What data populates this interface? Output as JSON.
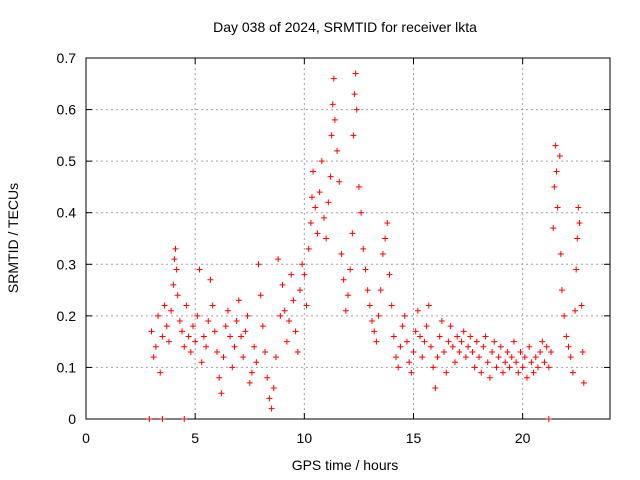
{
  "chart_data": {
    "type": "scatter",
    "title": "Day 038 of 2024, SRMTID for receiver lkta",
    "xlabel": "GPS time / hours",
    "ylabel": "SRMTID / TECUs",
    "xlim": [
      0,
      24
    ],
    "ylim": [
      0,
      0.7
    ],
    "xticks": [
      0,
      5,
      10,
      15,
      20
    ],
    "yticks": [
      0,
      0.1,
      0.2,
      0.3,
      0.4,
      0.5,
      0.6,
      0.7
    ],
    "grid": true,
    "marker": "+",
    "color": "#ff0000",
    "series": [
      {
        "name": "lkta",
        "points": [
          [
            2.9,
            0.0
          ],
          [
            3.5,
            0.0
          ],
          [
            4.5,
            0.0
          ],
          [
            21.2,
            0.0
          ],
          [
            3.0,
            0.17
          ],
          [
            3.1,
            0.12
          ],
          [
            3.2,
            0.14
          ],
          [
            3.3,
            0.2
          ],
          [
            3.4,
            0.09
          ],
          [
            3.5,
            0.16
          ],
          [
            3.6,
            0.22
          ],
          [
            3.7,
            0.18
          ],
          [
            3.8,
            0.15
          ],
          [
            3.9,
            0.21
          ],
          [
            4.0,
            0.26
          ],
          [
            4.05,
            0.31
          ],
          [
            4.1,
            0.33
          ],
          [
            4.15,
            0.29
          ],
          [
            4.2,
            0.24
          ],
          [
            4.3,
            0.19
          ],
          [
            4.4,
            0.17
          ],
          [
            4.5,
            0.14
          ],
          [
            4.6,
            0.22
          ],
          [
            4.7,
            0.16
          ],
          [
            4.8,
            0.13
          ],
          [
            4.9,
            0.18
          ],
          [
            5.0,
            0.15
          ],
          [
            5.1,
            0.2
          ],
          [
            5.2,
            0.29
          ],
          [
            5.3,
            0.11
          ],
          [
            5.4,
            0.16
          ],
          [
            5.5,
            0.14
          ],
          [
            5.6,
            0.19
          ],
          [
            5.7,
            0.27
          ],
          [
            5.8,
            0.22
          ],
          [
            5.9,
            0.17
          ],
          [
            6.0,
            0.13
          ],
          [
            6.1,
            0.08
          ],
          [
            6.2,
            0.05
          ],
          [
            6.3,
            0.12
          ],
          [
            6.4,
            0.18
          ],
          [
            6.5,
            0.21
          ],
          [
            6.6,
            0.16
          ],
          [
            6.7,
            0.1
          ],
          [
            6.8,
            0.14
          ],
          [
            6.9,
            0.19
          ],
          [
            7.0,
            0.23
          ],
          [
            7.1,
            0.16
          ],
          [
            7.2,
            0.12
          ],
          [
            7.3,
            0.17
          ],
          [
            7.4,
            0.2
          ],
          [
            7.5,
            0.07
          ],
          [
            7.6,
            0.09
          ],
          [
            7.7,
            0.14
          ],
          [
            7.8,
            0.11
          ],
          [
            7.9,
            0.3
          ],
          [
            8.0,
            0.24
          ],
          [
            8.1,
            0.18
          ],
          [
            8.2,
            0.13
          ],
          [
            8.3,
            0.08
          ],
          [
            8.4,
            0.04
          ],
          [
            8.5,
            0.02
          ],
          [
            8.6,
            0.06
          ],
          [
            8.7,
            0.12
          ],
          [
            8.8,
            0.31
          ],
          [
            8.9,
            0.2
          ],
          [
            9.0,
            0.26
          ],
          [
            9.1,
            0.21
          ],
          [
            9.2,
            0.15
          ],
          [
            9.3,
            0.19
          ],
          [
            9.4,
            0.28
          ],
          [
            9.5,
            0.23
          ],
          [
            9.6,
            0.17
          ],
          [
            9.7,
            0.13
          ],
          [
            9.8,
            0.25
          ],
          [
            9.9,
            0.3
          ],
          [
            10.0,
            0.28
          ],
          [
            10.1,
            0.22
          ],
          [
            10.2,
            0.33
          ],
          [
            10.3,
            0.38
          ],
          [
            10.35,
            0.43
          ],
          [
            10.4,
            0.48
          ],
          [
            10.5,
            0.41
          ],
          [
            10.6,
            0.36
          ],
          [
            10.7,
            0.44
          ],
          [
            10.8,
            0.5
          ],
          [
            10.9,
            0.39
          ],
          [
            11.0,
            0.35
          ],
          [
            11.1,
            0.42
          ],
          [
            11.2,
            0.47
          ],
          [
            11.25,
            0.55
          ],
          [
            11.3,
            0.61
          ],
          [
            11.35,
            0.66
          ],
          [
            11.4,
            0.58
          ],
          [
            11.5,
            0.52
          ],
          [
            11.6,
            0.46
          ],
          [
            11.7,
            0.32
          ],
          [
            11.8,
            0.27
          ],
          [
            11.9,
            0.21
          ],
          [
            12.0,
            0.24
          ],
          [
            12.1,
            0.29
          ],
          [
            12.2,
            0.36
          ],
          [
            12.25,
            0.55
          ],
          [
            12.3,
            0.63
          ],
          [
            12.35,
            0.67
          ],
          [
            12.4,
            0.6
          ],
          [
            12.5,
            0.45
          ],
          [
            12.6,
            0.4
          ],
          [
            12.7,
            0.33
          ],
          [
            12.8,
            0.29
          ],
          [
            12.9,
            0.25
          ],
          [
            13.0,
            0.22
          ],
          [
            13.1,
            0.19
          ],
          [
            13.2,
            0.17
          ],
          [
            13.3,
            0.15
          ],
          [
            13.4,
            0.2
          ],
          [
            13.5,
            0.25
          ],
          [
            13.6,
            0.32
          ],
          [
            13.7,
            0.35
          ],
          [
            13.8,
            0.38
          ],
          [
            13.9,
            0.28
          ],
          [
            14.0,
            0.22
          ],
          [
            14.1,
            0.16
          ],
          [
            14.2,
            0.12
          ],
          [
            14.3,
            0.1
          ],
          [
            14.4,
            0.14
          ],
          [
            14.5,
            0.18
          ],
          [
            14.6,
            0.2
          ],
          [
            14.7,
            0.15
          ],
          [
            14.8,
            0.11
          ],
          [
            14.9,
            0.09
          ],
          [
            15.0,
            0.13
          ],
          [
            15.1,
            0.17
          ],
          [
            15.2,
            0.21
          ],
          [
            15.3,
            0.16
          ],
          [
            15.4,
            0.12
          ],
          [
            15.5,
            0.15
          ],
          [
            15.6,
            0.18
          ],
          [
            15.7,
            0.22
          ],
          [
            15.8,
            0.14
          ],
          [
            15.9,
            0.1
          ],
          [
            16.0,
            0.06
          ],
          [
            16.1,
            0.12
          ],
          [
            16.2,
            0.16
          ],
          [
            16.3,
            0.19
          ],
          [
            16.4,
            0.13
          ],
          [
            16.5,
            0.09
          ],
          [
            16.6,
            0.15
          ],
          [
            16.7,
            0.18
          ],
          [
            16.8,
            0.14
          ],
          [
            16.9,
            0.11
          ],
          [
            17.0,
            0.16
          ],
          [
            17.1,
            0.13
          ],
          [
            17.2,
            0.15
          ],
          [
            17.3,
            0.17
          ],
          [
            17.4,
            0.12
          ],
          [
            17.5,
            0.14
          ],
          [
            17.6,
            0.16
          ],
          [
            17.7,
            0.13
          ],
          [
            17.8,
            0.1
          ],
          [
            17.9,
            0.15
          ],
          [
            18.0,
            0.12
          ],
          [
            18.1,
            0.09
          ],
          [
            18.2,
            0.14
          ],
          [
            18.3,
            0.16
          ],
          [
            18.4,
            0.11
          ],
          [
            18.5,
            0.08
          ],
          [
            18.6,
            0.13
          ],
          [
            18.7,
            0.15
          ],
          [
            18.8,
            0.1
          ],
          [
            18.9,
            0.12
          ],
          [
            19.0,
            0.14
          ],
          [
            19.1,
            0.09
          ],
          [
            19.2,
            0.11
          ],
          [
            19.3,
            0.13
          ],
          [
            19.4,
            0.1
          ],
          [
            19.5,
            0.12
          ],
          [
            19.6,
            0.15
          ],
          [
            19.7,
            0.11
          ],
          [
            19.8,
            0.09
          ],
          [
            19.9,
            0.13
          ],
          [
            20.0,
            0.1
          ],
          [
            20.1,
            0.12
          ],
          [
            20.2,
            0.08
          ],
          [
            20.3,
            0.14
          ],
          [
            20.4,
            0.11
          ],
          [
            20.5,
            0.09
          ],
          [
            20.6,
            0.12
          ],
          [
            20.7,
            0.1
          ],
          [
            20.8,
            0.13
          ],
          [
            20.9,
            0.15
          ],
          [
            21.0,
            0.11
          ],
          [
            21.1,
            0.14
          ],
          [
            21.2,
            0.1
          ],
          [
            21.3,
            0.13
          ],
          [
            21.4,
            0.37
          ],
          [
            21.45,
            0.45
          ],
          [
            21.5,
            0.53
          ],
          [
            21.55,
            0.48
          ],
          [
            21.6,
            0.41
          ],
          [
            21.7,
            0.51
          ],
          [
            21.75,
            0.32
          ],
          [
            21.8,
            0.25
          ],
          [
            21.9,
            0.2
          ],
          [
            22.0,
            0.16
          ],
          [
            22.1,
            0.14
          ],
          [
            22.2,
            0.12
          ],
          [
            22.3,
            0.09
          ],
          [
            22.4,
            0.21
          ],
          [
            22.45,
            0.29
          ],
          [
            22.5,
            0.35
          ],
          [
            22.55,
            0.41
          ],
          [
            22.6,
            0.38
          ],
          [
            22.7,
            0.22
          ],
          [
            22.75,
            0.13
          ],
          [
            22.8,
            0.07
          ]
        ]
      }
    ]
  }
}
